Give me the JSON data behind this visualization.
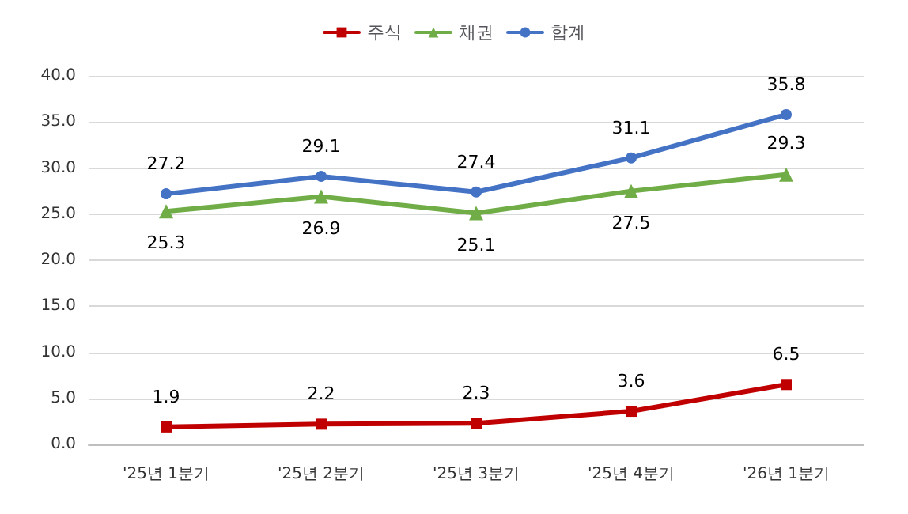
{
  "chart_data": {
    "type": "line",
    "categories": [
      "'25년 1분기",
      "'25년 2분기",
      "'25년 3분기",
      "'25년 4분기",
      "'26년 1분기"
    ],
    "series": [
      {
        "name": "주식",
        "color": "#c00000",
        "marker": "square",
        "values": [
          1.9,
          2.2,
          2.3,
          3.6,
          6.5
        ]
      },
      {
        "name": "채권",
        "color": "#70ad47",
        "marker": "triangle",
        "values": [
          25.3,
          26.9,
          25.1,
          27.5,
          29.3
        ]
      },
      {
        "name": "합계",
        "color": "#4472c4",
        "marker": "circle",
        "values": [
          27.2,
          29.1,
          27.4,
          31.1,
          35.8
        ]
      }
    ],
    "ylim": [
      0,
      40
    ],
    "yticks": [
      {
        "value": 0,
        "label": "0.0"
      },
      {
        "value": 5,
        "label": "5.0"
      },
      {
        "value": 10,
        "label": "10.0"
      },
      {
        "value": 15,
        "label": "15.0"
      },
      {
        "value": 20,
        "label": "20.0"
      },
      {
        "value": 25,
        "label": "25.0"
      },
      {
        "value": 30,
        "label": "30.0"
      },
      {
        "value": 35,
        "label": "35.0"
      },
      {
        "value": 40,
        "label": "40.0"
      }
    ],
    "grid": "y",
    "legend": "top",
    "data_labels": true,
    "line_style": "solid"
  }
}
